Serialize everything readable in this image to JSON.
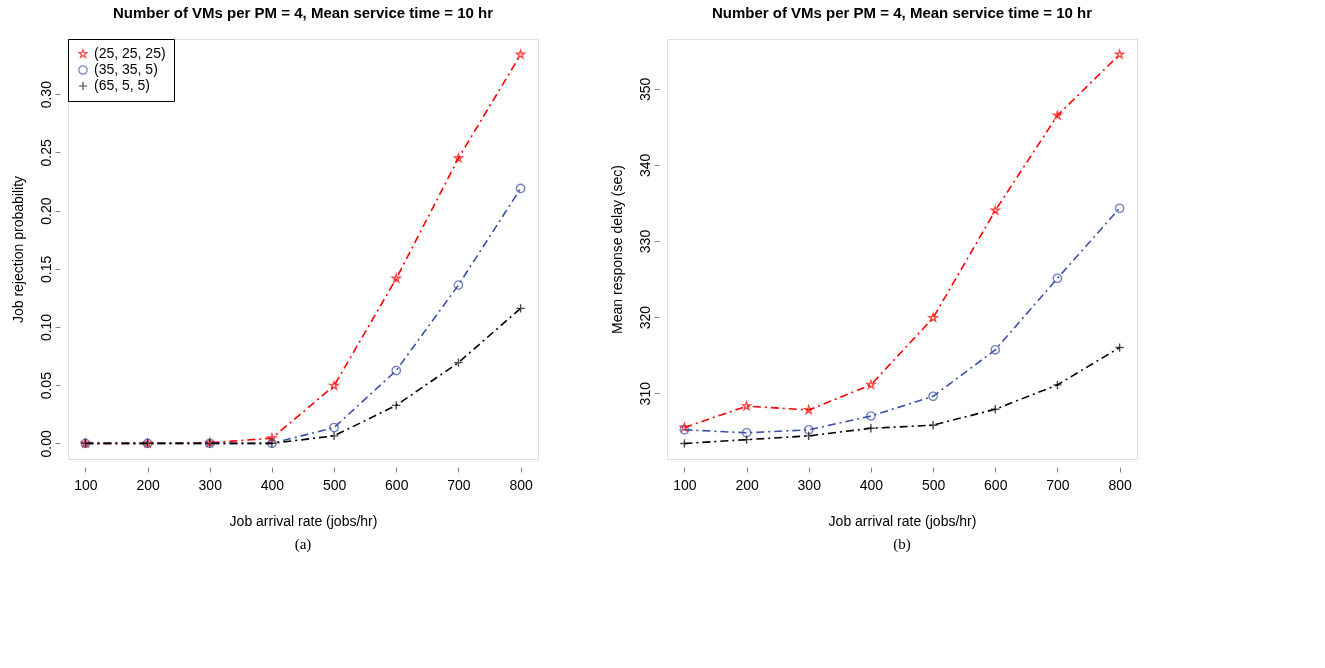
{
  "chart_data": [
    {
      "type": "line",
      "title": "Number of VMs per PM = 4, Mean service time = 10 hr",
      "xlabel": "Job arrival rate (jobs/hr)",
      "ylabel": "Job rejection probability",
      "x": [
        100,
        200,
        300,
        400,
        500,
        600,
        700,
        800
      ],
      "xlim": [
        72,
        828
      ],
      "xticks": [
        100,
        200,
        300,
        400,
        500,
        600,
        700,
        800
      ],
      "ylim": [
        -0.0134,
        0.3474
      ],
      "yticks": [
        {
          "value": 0,
          "label": "0.00"
        },
        {
          "value": 0.05,
          "label": "0.05"
        },
        {
          "value": 0.1,
          "label": "0.10"
        },
        {
          "value": 0.15,
          "label": "0.15"
        },
        {
          "value": 0.2,
          "label": "0.20"
        },
        {
          "value": 0.25,
          "label": "0.25"
        },
        {
          "value": 0.3,
          "label": "0.30"
        }
      ],
      "grid": false,
      "legend": "top left",
      "line_style": "dashed",
      "annotations": [
        "(a)"
      ],
      "series": [
        {
          "name": "(25, 25, 25)",
          "color": "#ff0000",
          "marker": "star",
          "values": [
            0,
            0,
            0.0005,
            0.0045,
            0.0495,
            0.1416,
            0.245,
            0.334
          ]
        },
        {
          "name": "(35, 35, 5)",
          "color": "#3a4fa8",
          "marker": "circle",
          "values": [
            0,
            0,
            0,
            0,
            0.0136,
            0.0626,
            0.136,
            0.219
          ]
        },
        {
          "name": "(65, 5, 5)",
          "color": "#000000",
          "marker": "cross",
          "values": [
            0,
            0,
            0,
            0,
            0.0065,
            0.0327,
            0.0694,
            0.116
          ]
        }
      ]
    },
    {
      "type": "line",
      "title": "Number of VMs per PM = 4, Mean service time = 10 hr",
      "xlabel": "Job arrival rate (jobs/hr)",
      "ylabel": "Mean response delay (sec)",
      "x": [
        100,
        200,
        300,
        400,
        500,
        600,
        700,
        800
      ],
      "xlim": [
        72,
        828
      ],
      "xticks": [
        100,
        200,
        300,
        400,
        500,
        600,
        700,
        800
      ],
      "ylim": [
        301.36,
        356.54
      ],
      "yticks": [
        310,
        320,
        330,
        340,
        350
      ],
      "grid": false,
      "legend": "top left",
      "line_style": "dashed",
      "annotations": [
        "(b)"
      ],
      "series": [
        {
          "name": "(25, 25, 25)",
          "color": "#ff0000",
          "marker": "star",
          "values": [
            305.5,
            308.3,
            307.8,
            311.1,
            319.9,
            334.0,
            346.5,
            354.5
          ]
        },
        {
          "name": "(35, 35, 5)",
          "color": "#3a4fa8",
          "marker": "circle",
          "values": [
            305.2,
            304.8,
            305.2,
            307.0,
            309.6,
            315.7,
            325.1,
            334.3
          ]
        },
        {
          "name": "(65, 5, 5)",
          "color": "#000000",
          "marker": "cross",
          "values": [
            303.4,
            303.9,
            304.4,
            305.4,
            305.8,
            307.9,
            311.1,
            316.0
          ]
        }
      ]
    }
  ]
}
